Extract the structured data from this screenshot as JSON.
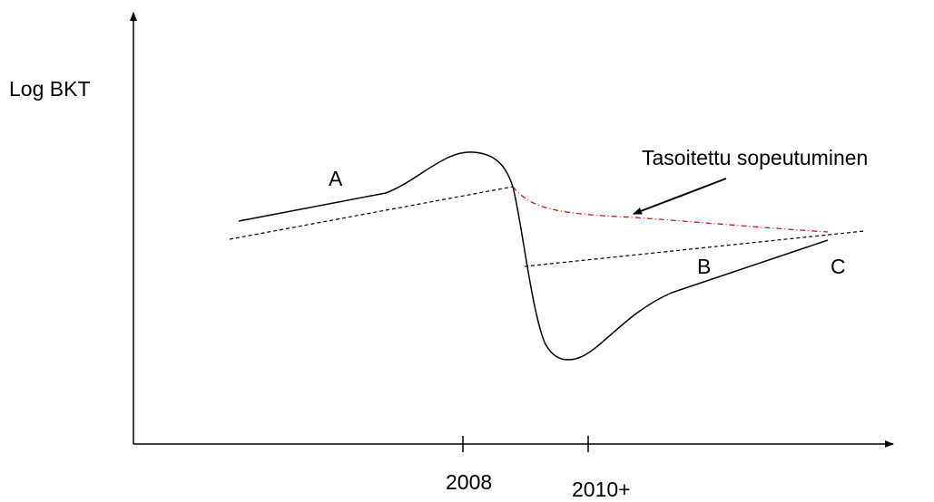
{
  "y_axis_label": "Log BKT",
  "x_labels": [
    "2008",
    "2010+"
  ],
  "annotations": {
    "a": "A",
    "b": "B",
    "c": "C",
    "smoothed": "Tasoitettu sopeutuminen"
  }
}
